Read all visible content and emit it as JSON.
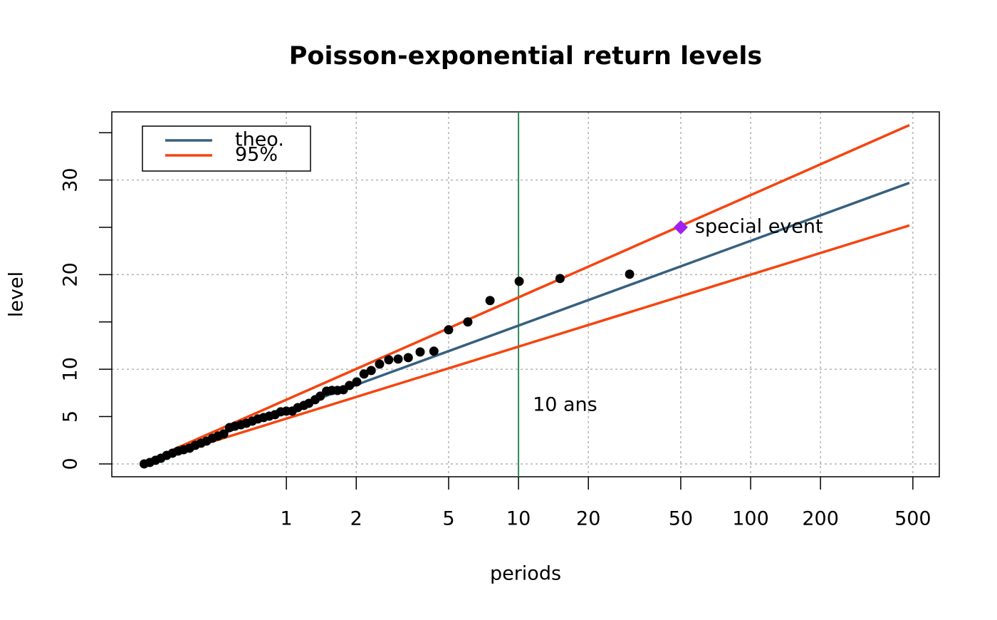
{
  "chart_data": {
    "type": "return-level",
    "title": "Poisson-exponential return levels",
    "xlabel": "periods",
    "ylabel": "level",
    "log_x": true,
    "xlim": [
      0.177,
      650
    ],
    "ylim": [
      -1.36,
      37.2
    ],
    "xticks": [
      1,
      2,
      5,
      10,
      20,
      50,
      100,
      200,
      500
    ],
    "yticks": [
      0,
      5,
      10,
      20,
      30
    ],
    "yticks_minor": [
      15,
      25,
      35
    ],
    "ygrid": [
      0,
      10,
      20,
      30
    ],
    "grid": true,
    "legend": "top-left",
    "line_x": [
      0.318,
      483
    ],
    "series": [
      {
        "name": "theo.",
        "color": "#36607f",
        "values": [
          1.2,
          29.7
        ]
      },
      {
        "name": "95%",
        "color": "#f5450f",
        "values": [
          1.4,
          35.8
        ],
        "lower": [
          1.0,
          25.2
        ]
      }
    ],
    "points": {
      "color": "#000000",
      "x": [
        0.244,
        0.258,
        0.273,
        0.288,
        0.305,
        0.323,
        0.342,
        0.361,
        0.383,
        0.405,
        0.429,
        0.453,
        0.48,
        0.508,
        0.537,
        0.569,
        0.601,
        0.637,
        0.673,
        0.713,
        0.754,
        0.798,
        0.844,
        0.893,
        0.945,
        1,
        1.06,
        1.12,
        1.19,
        1.25,
        1.33,
        1.4,
        1.49,
        1.57,
        1.66,
        1.76,
        1.87,
        2.01,
        2.16,
        2.32,
        2.52,
        2.76,
        3.03,
        3.35,
        3.77,
        4.32,
        5,
        6.05,
        7.54,
        10.07,
        15.1,
        30.1
      ],
      "y": [
        0,
        0.15,
        0.38,
        0.6,
        0.9,
        1.13,
        1.36,
        1.5,
        1.66,
        1.96,
        2.19,
        2.41,
        2.71,
        2.94,
        3.17,
        3.84,
        3.99,
        4.14,
        4.3,
        4.52,
        4.75,
        4.9,
        5.05,
        5.2,
        5.5,
        5.58,
        5.58,
        5.95,
        6.18,
        6.4,
        6.78,
        7.16,
        7.69,
        7.76,
        7.76,
        7.84,
        8.29,
        8.67,
        9.5,
        9.87,
        10.55,
        11,
        11.08,
        11.23,
        11.83,
        11.91,
        14.17,
        15,
        17.26,
        19.29,
        19.59,
        20.05
      ]
    },
    "vline": {
      "x": 10,
      "label": "10 ans",
      "color": "#2e8b57"
    },
    "special": {
      "x": 50,
      "y": 25,
      "label": "special event",
      "color": "#a020f0"
    }
  }
}
